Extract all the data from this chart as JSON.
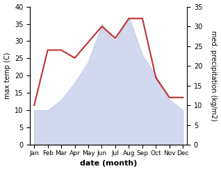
{
  "months": [
    "Jan",
    "Feb",
    "Mar",
    "Apr",
    "May",
    "Jun",
    "Jul",
    "Aug",
    "Sep",
    "Oct",
    "Nov",
    "Dec"
  ],
  "temperature": [
    10,
    10,
    13,
    18,
    24,
    35,
    30,
    37,
    26,
    20,
    13,
    10
  ],
  "precipitation": [
    10,
    24,
    24,
    22,
    26,
    30,
    27,
    32,
    32,
    17,
    12,
    12
  ],
  "temp_fill_color": "#c0c8e8",
  "temp_fill_alpha": 0.7,
  "precip_color": "#c03030",
  "temp_ylim": [
    0,
    40
  ],
  "precip_ylim": [
    0,
    35
  ],
  "xlabel": "date (month)",
  "ylabel_left": "max temp (C)",
  "ylabel_right": "med. precipitation (kg/m2)",
  "background_color": "#ffffff"
}
